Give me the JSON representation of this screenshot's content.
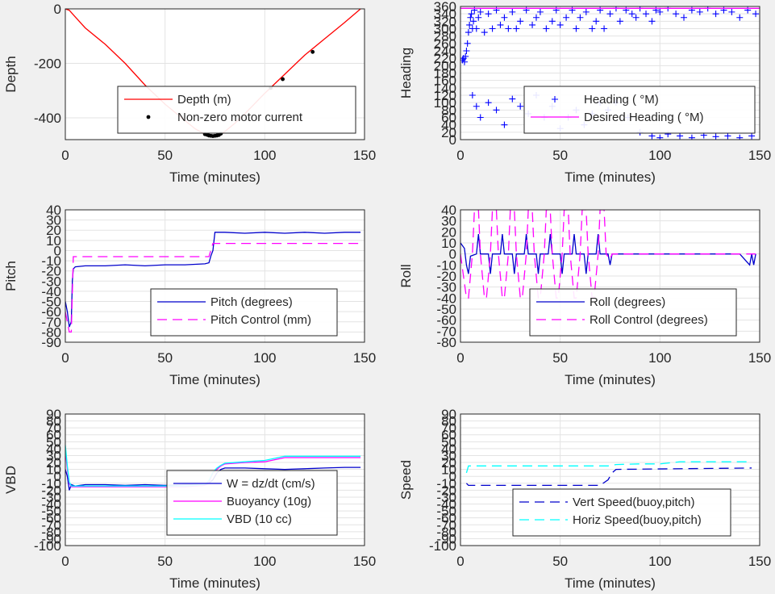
{
  "chart_data": [
    {
      "id": "depth",
      "type": "line",
      "xlabel": "Time (minutes)",
      "ylabel": "Depth",
      "xlim": [
        0,
        150
      ],
      "ylim": [
        -480,
        0
      ],
      "xticks": [
        0,
        50,
        100,
        150
      ],
      "yticks": [
        0,
        -200,
        -400
      ],
      "grid": true,
      "legend_position": "bottom-right",
      "series": [
        {
          "name": "Depth (m)",
          "kind": "line",
          "color": "#ff0000",
          "x": [
            0,
            2,
            5,
            10,
            20,
            30,
            40,
            50,
            60,
            65,
            70,
            72,
            74,
            76,
            78,
            80,
            85,
            90,
            100,
            110,
            120,
            130,
            140,
            148
          ],
          "y": [
            0,
            -5,
            -30,
            -70,
            -130,
            -200,
            -280,
            -350,
            -410,
            -440,
            -460,
            -466,
            -467,
            -465,
            -460,
            -450,
            -420,
            -385,
            -310,
            -240,
            -170,
            -110,
            -50,
            0
          ]
        },
        {
          "name": "Non-zero motor current",
          "kind": "scatter",
          "color": "#000000",
          "x": [
            70,
            71,
            72,
            73,
            74,
            75,
            76,
            77,
            78,
            103,
            109,
            124
          ],
          "y": [
            -460,
            -462,
            -465,
            -466,
            -467,
            -466,
            -465,
            -463,
            -458,
            -290,
            -258,
            -158
          ]
        }
      ]
    },
    {
      "id": "heading",
      "type": "scatter",
      "xlabel": "Time (minutes)",
      "ylabel": "Heading",
      "xlim": [
        0,
        150
      ],
      "ylim": [
        0,
        360
      ],
      "xticks": [
        0,
        50,
        100,
        150
      ],
      "yticks": [
        0,
        20,
        40,
        60,
        80,
        100,
        120,
        140,
        160,
        180,
        200,
        220,
        240,
        260,
        280,
        300,
        320,
        340,
        360
      ],
      "grid": true,
      "legend_position": "bottom-right",
      "series": [
        {
          "name": "Heading ( °M)",
          "kind": "plus",
          "color": "#0000ff",
          "x": [
            1,
            1.5,
            2,
            2.5,
            3,
            3.5,
            4,
            4.5,
            5,
            5.5,
            6,
            6.5,
            7,
            8,
            9,
            10,
            12,
            14,
            16,
            18,
            20,
            22,
            24,
            26,
            28,
            30,
            33,
            36,
            38,
            40,
            43,
            46,
            48,
            50,
            53,
            56,
            58,
            60,
            63,
            66,
            68,
            70,
            72,
            75,
            78,
            80,
            83,
            86,
            88,
            90,
            93,
            96,
            98,
            100,
            104,
            108,
            112,
            116,
            120,
            124,
            128,
            132,
            136,
            140,
            144,
            148,
            6,
            8,
            10,
            14,
            18,
            22,
            26,
            30,
            34,
            38,
            42,
            46,
            50,
            54,
            58,
            62,
            66,
            70,
            74,
            78,
            84,
            90,
            96,
            100,
            104,
            110,
            116,
            122,
            128,
            134,
            140,
            146
          ],
          "y": [
            215,
            220,
            210,
            225,
            240,
            260,
            290,
            310,
            330,
            340,
            300,
            320,
            350,
            300,
            330,
            345,
            290,
            340,
            300,
            350,
            310,
            330,
            300,
            345,
            300,
            320,
            350,
            310,
            330,
            345,
            300,
            320,
            350,
            310,
            330,
            350,
            300,
            330,
            345,
            300,
            320,
            350,
            300,
            340,
            355,
            320,
            350,
            340,
            330,
            355,
            340,
            320,
            350,
            345,
            355,
            340,
            330,
            350,
            345,
            355,
            340,
            350,
            345,
            330,
            350,
            340,
            120,
            90,
            60,
            100,
            80,
            40,
            110,
            90,
            70,
            120,
            60,
            90,
            30,
            60,
            80,
            40,
            70,
            100,
            80,
            100,
            60,
            20,
            10,
            5,
            15,
            10,
            5,
            12,
            8,
            10,
            5,
            10
          ]
        },
        {
          "name": "Desired Heading ( °M)",
          "kind": "line",
          "color": "#ff00ff",
          "x": [
            0,
            150
          ],
          "y": [
            355,
            355
          ]
        }
      ]
    },
    {
      "id": "pitch",
      "type": "line",
      "xlabel": "Time (minutes)",
      "ylabel": "Pitch",
      "xlim": [
        0,
        150
      ],
      "ylim": [
        -90,
        40
      ],
      "xticks": [
        0,
        50,
        100,
        150
      ],
      "yticks": [
        40,
        30,
        20,
        10,
        0,
        -10,
        -20,
        -30,
        -40,
        -50,
        -60,
        -70,
        -80,
        -90
      ],
      "grid": true,
      "legend_position": "bottom-right",
      "series": [
        {
          "name": "Pitch (degrees)",
          "kind": "line",
          "color": "#0000cc",
          "x": [
            0,
            1,
            2,
            3,
            3.5,
            4,
            5,
            10,
            20,
            30,
            40,
            50,
            60,
            70,
            72,
            73,
            74,
            75,
            80,
            90,
            100,
            110,
            120,
            130,
            140,
            148
          ],
          "y": [
            -50,
            -60,
            -75,
            -70,
            -30,
            -18,
            -16,
            -15,
            -15,
            -14,
            -15,
            -14,
            -14,
            -13,
            -12,
            -5,
            0,
            18,
            18,
            17,
            18,
            17,
            18,
            17,
            18,
            18
          ]
        },
        {
          "name": "Pitch Control (mm)",
          "kind": "dashed",
          "color": "#ff00ff",
          "x": [
            0,
            2,
            3,
            4,
            72,
            74,
            148
          ],
          "y": [
            -60,
            -80,
            -80,
            -6,
            -6,
            7,
            7
          ]
        }
      ]
    },
    {
      "id": "roll",
      "type": "line",
      "xlabel": "Time (minutes)",
      "ylabel": "Roll",
      "xlim": [
        0,
        150
      ],
      "ylim": [
        -80,
        40
      ],
      "xticks": [
        0,
        50,
        100,
        150
      ],
      "yticks": [
        40,
        30,
        20,
        10,
        0,
        -10,
        -20,
        -30,
        -40,
        -50,
        -60,
        -70,
        -80
      ],
      "grid": true,
      "legend_position": "bottom-right",
      "series": [
        {
          "name": "Roll (degrees)",
          "kind": "line",
          "color": "#0000cc",
          "x": [
            0,
            2,
            3,
            4,
            5,
            8,
            9,
            10,
            14,
            15,
            16,
            20,
            21,
            22,
            26,
            27,
            28,
            32,
            33,
            34,
            38,
            39,
            40,
            44,
            45,
            46,
            50,
            51,
            52,
            56,
            57,
            58,
            62,
            63,
            64,
            68,
            69,
            70,
            74,
            75,
            76,
            80,
            90,
            100,
            110,
            120,
            130,
            140,
            145,
            146,
            147,
            148
          ],
          "y": [
            10,
            5,
            -10,
            -18,
            -2,
            0,
            18,
            0,
            0,
            -18,
            0,
            0,
            18,
            0,
            0,
            -18,
            0,
            0,
            18,
            0,
            0,
            -18,
            0,
            0,
            18,
            0,
            0,
            -18,
            0,
            0,
            18,
            0,
            0,
            -18,
            0,
            0,
            18,
            0,
            0,
            -10,
            0,
            0,
            0,
            0,
            0,
            0,
            0,
            0,
            -10,
            0,
            -10,
            0
          ]
        },
        {
          "name": "Roll Control (degrees)",
          "kind": "dashed",
          "color": "#ff00ff",
          "x": [
            0,
            3,
            4,
            6,
            7,
            9,
            10,
            12,
            13,
            15,
            16,
            18,
            19,
            21,
            22,
            24,
            25,
            27,
            28,
            30,
            31,
            33,
            34,
            36,
            37,
            39,
            40,
            42,
            43,
            45,
            46,
            48,
            49,
            51,
            52,
            54,
            55,
            57,
            58,
            60,
            61,
            63,
            64,
            66,
            67,
            69,
            70,
            72,
            73,
            75,
            76,
            80,
            85,
            90,
            95,
            100,
            105,
            110,
            115,
            120,
            125,
            130,
            135,
            140,
            145,
            148
          ],
          "y": [
            0,
            -40,
            -40,
            0,
            40,
            40,
            0,
            -40,
            -40,
            0,
            40,
            40,
            0,
            -40,
            -40,
            0,
            40,
            40,
            0,
            -40,
            -40,
            0,
            40,
            40,
            0,
            -40,
            -40,
            0,
            40,
            40,
            0,
            -40,
            -40,
            0,
            40,
            40,
            0,
            -40,
            -40,
            0,
            40,
            40,
            0,
            -40,
            -40,
            0,
            40,
            40,
            0,
            -5,
            0,
            0,
            0,
            0,
            0,
            0,
            0,
            0,
            0,
            0,
            0,
            0,
            0,
            0,
            0,
            0
          ]
        }
      ]
    },
    {
      "id": "vbd",
      "type": "line",
      "xlabel": "Time (minutes)",
      "ylabel": "VBD",
      "xlim": [
        0,
        150
      ],
      "ylim": [
        -100,
        90
      ],
      "xticks": [
        0,
        50,
        100,
        150
      ],
      "yticks": [
        90,
        80,
        70,
        60,
        50,
        40,
        30,
        20,
        10,
        0,
        -10,
        -20,
        -30,
        -40,
        -50,
        -60,
        -70,
        -80,
        -90,
        -100
      ],
      "grid": true,
      "legend_position": "bottom-right",
      "series": [
        {
          "name": "W = dz/dt (cm/s)",
          "kind": "line",
          "color": "#0000cc",
          "x": [
            0,
            1,
            2,
            3,
            5,
            10,
            20,
            30,
            40,
            50,
            60,
            70,
            72,
            74,
            76,
            78,
            80,
            90,
            100,
            110,
            120,
            130,
            140,
            148
          ],
          "y": [
            10,
            0,
            -20,
            -12,
            -14,
            -12,
            -12,
            -13,
            -12,
            -13,
            -12,
            -12,
            -10,
            -5,
            5,
            10,
            12,
            12,
            11,
            10,
            11,
            12,
            13,
            13
          ]
        },
        {
          "name": "Buoyancy (10g)",
          "kind": "line",
          "color": "#ff00ff",
          "x": [
            0,
            1,
            2,
            3,
            5,
            10,
            20,
            30,
            40,
            50,
            60,
            70,
            72,
            74,
            76,
            78,
            80,
            90,
            100,
            110,
            120,
            130,
            140,
            148
          ],
          "y": [
            38,
            10,
            -10,
            -15,
            -15,
            -15,
            -15,
            -15,
            -15,
            -15,
            -15,
            -13,
            -8,
            5,
            10,
            15,
            18,
            20,
            21,
            27,
            27,
            27,
            27,
            27
          ]
        },
        {
          "name": "VBD (10 cc)",
          "kind": "line",
          "color": "#00ffff",
          "x": [
            0,
            1,
            2,
            3,
            5,
            10,
            20,
            30,
            40,
            50,
            60,
            70,
            72,
            74,
            76,
            78,
            80,
            90,
            100,
            110,
            120,
            130,
            140,
            148
          ],
          "y": [
            45,
            15,
            -8,
            -14,
            -14,
            -14,
            -14,
            -14,
            -14,
            -14,
            -14,
            -12,
            -6,
            6,
            12,
            16,
            19,
            21,
            23,
            29,
            29,
            29,
            29,
            29
          ]
        }
      ]
    },
    {
      "id": "speed",
      "type": "line",
      "xlabel": "Time (minutes)",
      "ylabel": "Speed",
      "xlim": [
        0,
        150
      ],
      "ylim": [
        -100,
        90
      ],
      "xticks": [
        0,
        50,
        100,
        150
      ],
      "yticks": [
        90,
        80,
        70,
        60,
        50,
        40,
        30,
        20,
        10,
        0,
        -10,
        -20,
        -30,
        -40,
        -50,
        -60,
        -70,
        -80,
        -90,
        -100
      ],
      "grid": true,
      "legend_position": "bottom-right",
      "series": [
        {
          "name": "Vert Speed(buoy,pitch)",
          "kind": "dashed",
          "color": "#0000cc",
          "x": [
            3,
            4,
            70,
            74,
            76,
            78,
            146
          ],
          "y": [
            -10,
            -13,
            -13,
            -5,
            5,
            10,
            12
          ]
        },
        {
          "name": "Horiz Speed(buoy,pitch)",
          "kind": "dashed",
          "color": "#00ffff",
          "x": [
            3,
            4,
            70,
            74,
            78,
            90,
            100,
            110,
            146
          ],
          "y": [
            5,
            15,
            15,
            15,
            17,
            18,
            18,
            21,
            21
          ]
        }
      ]
    }
  ],
  "legend_labels": {
    "depth": [
      "Depth (m)",
      "Non-zero motor current"
    ],
    "heading": [
      "Heading ( °M)",
      "Desired Heading ( °M)"
    ],
    "pitch": [
      "Pitch (degrees)",
      "Pitch Control (mm)"
    ],
    "roll": [
      "Roll (degrees)",
      "Roll Control (degrees)"
    ],
    "vbd": [
      "W = dz/dt (cm/s)",
      "Buoyancy (10g)",
      "VBD (10 cc)"
    ],
    "speed": [
      "Vert Speed(buoy,pitch)",
      "Horiz Speed(buoy,pitch)"
    ]
  }
}
